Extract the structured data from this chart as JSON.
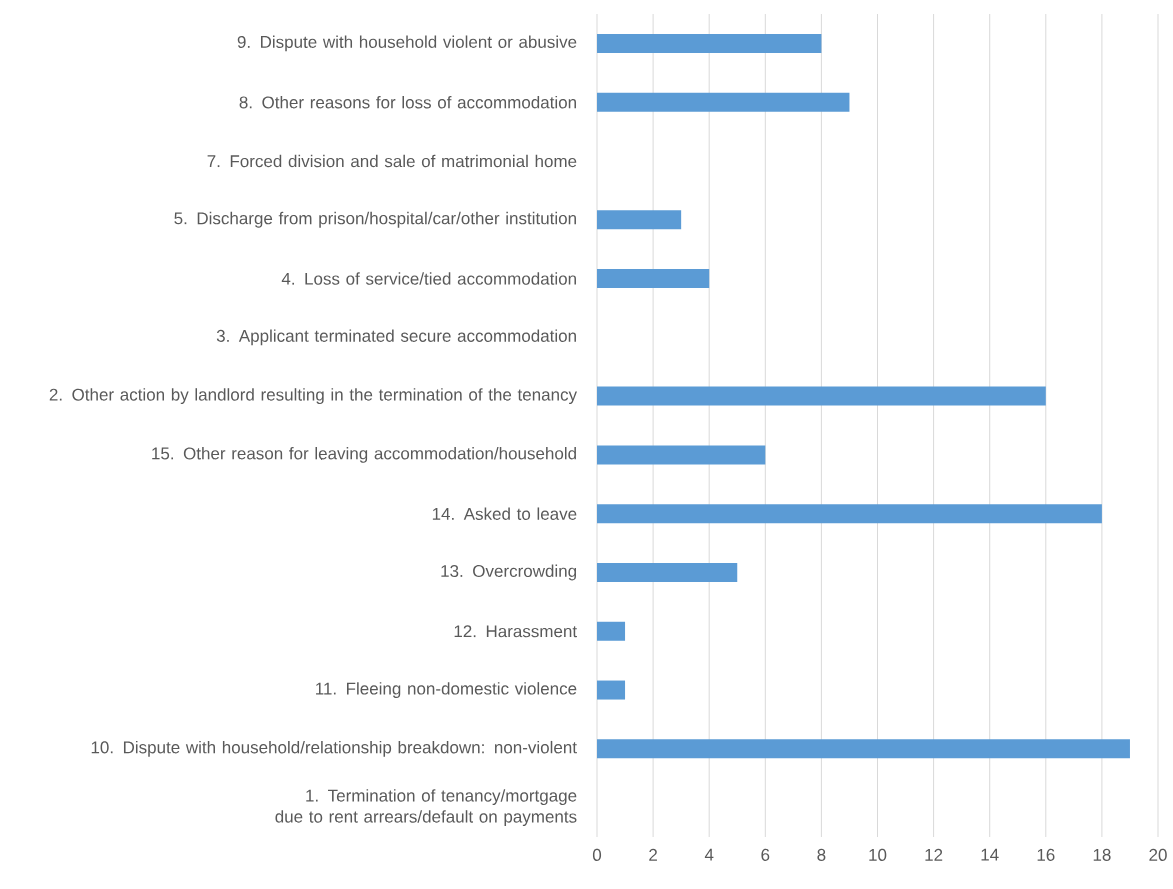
{
  "chart_data": {
    "type": "bar",
    "orientation": "horizontal",
    "categories": [
      "9. Dispute with household violent or abusive",
      "8. Other reasons for loss of accommodation",
      "7. Forced division and sale of matrimonial home",
      "5. Discharge from prison/hospital/car/other institution",
      "4. Loss of service/tied accommodation",
      "3. Applicant terminated secure accommodation",
      "2. Other action by landlord resulting in the termination of the tenancy",
      "15. Other reason for leaving accommodation/household",
      "14. Asked to leave",
      "13. Overcrowding",
      "12. Harassment",
      "11. Fleeing non-domestic violence",
      "10. Dispute with household/relationship breakdown: non-violent",
      "1. Termination of tenancy/mortgage due to rent arrears/default on payments"
    ],
    "values": [
      8,
      9,
      0,
      3,
      4,
      0,
      16,
      6,
      18,
      5,
      1,
      1,
      19,
      0
    ],
    "color": "#5b9bd5",
    "xlim": [
      0,
      20
    ],
    "xticks": [
      0,
      2,
      4,
      6,
      8,
      10,
      12,
      14,
      16,
      18,
      20
    ],
    "grid": "x"
  }
}
